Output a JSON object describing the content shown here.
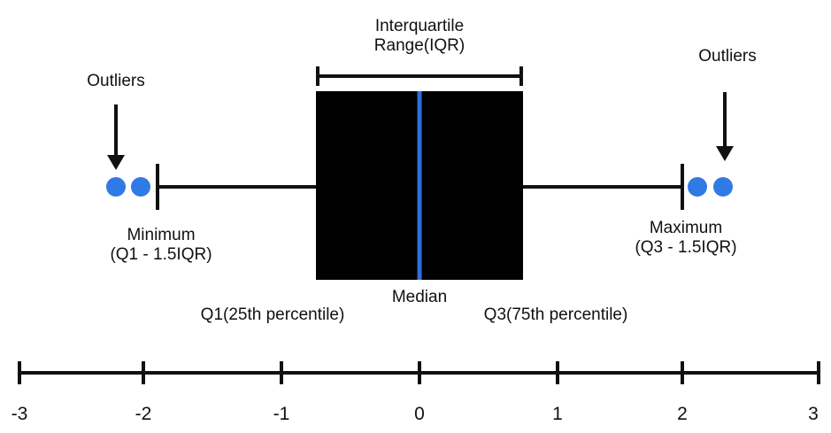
{
  "labels": {
    "iqr_line1": "Interquartile",
    "iqr_line2": "Range(IQR)",
    "outliers_left": "Outliers",
    "outliers_right": "Outliers",
    "minimum_line1": "Minimum",
    "minimum_line2": "(Q1 - 1.5IQR)",
    "maximum_line1": "Maximum",
    "maximum_line2": "(Q3 - 1.5IQR)",
    "median": "Median",
    "q1": "Q1(25th percentile)",
    "q3": "Q3(75th percentile)"
  },
  "axis": {
    "ticks": [
      "-3",
      "-2",
      "-1",
      "0",
      "1",
      "2",
      "3"
    ]
  },
  "colors": {
    "box": "#000000",
    "median": "#2f6fd8",
    "outlier": "#2f7ae5",
    "line": "#111111"
  }
}
